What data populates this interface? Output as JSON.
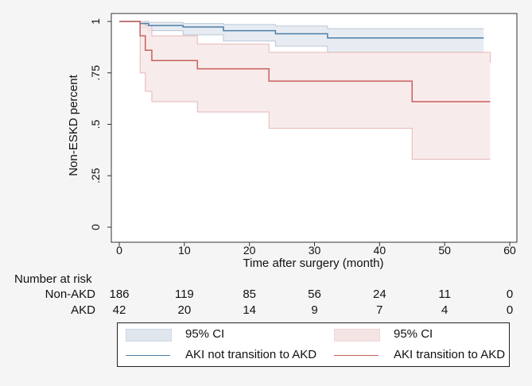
{
  "chart_data": {
    "type": "line",
    "subtype": "kaplan-meier",
    "title": "",
    "xlabel": "Time after surgery (month)",
    "ylabel": "Non-ESKD percent",
    "xlim": [
      0,
      60
    ],
    "ylim": [
      0,
      1
    ],
    "x_ticks": [
      0,
      10,
      20,
      30,
      40,
      50,
      60
    ],
    "y_ticks": [
      {
        "value": 0,
        "label": "0"
      },
      {
        "value": 0.25,
        "label": ".25"
      },
      {
        "value": 0.5,
        "label": ".5"
      },
      {
        "value": 0.75,
        "label": ".75"
      },
      {
        "value": 1,
        "label": "1"
      }
    ],
    "grid": false,
    "series": [
      {
        "name": "AKI not transition to AKD",
        "color": "#4b7fa8",
        "ci_color": "#dfe6ed",
        "ci_edge": "#b9c8d6",
        "steps": [
          [
            0,
            1
          ],
          [
            3.2,
            1
          ],
          [
            3.2,
            0.99
          ],
          [
            4.5,
            0.98
          ],
          [
            9.8,
            0.973
          ],
          [
            16,
            0.955
          ],
          [
            24,
            0.94
          ],
          [
            32,
            0.92
          ],
          [
            56,
            0.92
          ]
        ],
        "ci_upper": [
          [
            0,
            1
          ],
          [
            3.2,
            1
          ],
          [
            4.5,
            0.995
          ],
          [
            9.8,
            0.99
          ],
          [
            16,
            0.985
          ],
          [
            24,
            0.978
          ],
          [
            32,
            0.965
          ],
          [
            56,
            0.965
          ]
        ],
        "ci_lower": [
          [
            0,
            1
          ],
          [
            3.2,
            0.97
          ],
          [
            4.5,
            0.955
          ],
          [
            9.8,
            0.935
          ],
          [
            16,
            0.905
          ],
          [
            24,
            0.88
          ],
          [
            32,
            0.85
          ],
          [
            56,
            0.85
          ]
        ]
      },
      {
        "name": "AKI transition to AKD",
        "color": "#c9605e",
        "ci_color": "#f5e4e4",
        "ci_edge": "#e6b9b8",
        "steps": [
          [
            0,
            1
          ],
          [
            3.2,
            1
          ],
          [
            3.2,
            0.93
          ],
          [
            4,
            0.86
          ],
          [
            5,
            0.81
          ],
          [
            12,
            0.77
          ],
          [
            23,
            0.71
          ],
          [
            45,
            0.61
          ],
          [
            57,
            0.61
          ]
        ],
        "ci_upper": [
          [
            0,
            1
          ],
          [
            3.2,
            1
          ],
          [
            4,
            0.98
          ],
          [
            5,
            0.93
          ],
          [
            12,
            0.89
          ],
          [
            23,
            0.85
          ],
          [
            45,
            0.85
          ],
          [
            57,
            0.8
          ]
        ],
        "ci_lower": [
          [
            0,
            1
          ],
          [
            3.2,
            0.75
          ],
          [
            4,
            0.66
          ],
          [
            5,
            0.61
          ],
          [
            12,
            0.56
          ],
          [
            23,
            0.48
          ],
          [
            45,
            0.33
          ],
          [
            57,
            0.33
          ]
        ]
      }
    ]
  },
  "risk_table": {
    "title": "Number at risk",
    "times": [
      0,
      10,
      20,
      30,
      40,
      50,
      60
    ],
    "rows": [
      {
        "label": "Non-AKD",
        "values": [
          "186",
          "119",
          "85",
          "56",
          "24",
          "11",
          "0"
        ]
      },
      {
        "label": "AKD",
        "values": [
          "42",
          "20",
          "14",
          "9",
          "7",
          "4",
          "0"
        ]
      }
    ]
  },
  "legend": {
    "ci_label": "95% CI",
    "ci_label_2": "95% CI",
    "series_1": "AKI not transition to AKD",
    "series_2": "AKI transition to AKD"
  }
}
